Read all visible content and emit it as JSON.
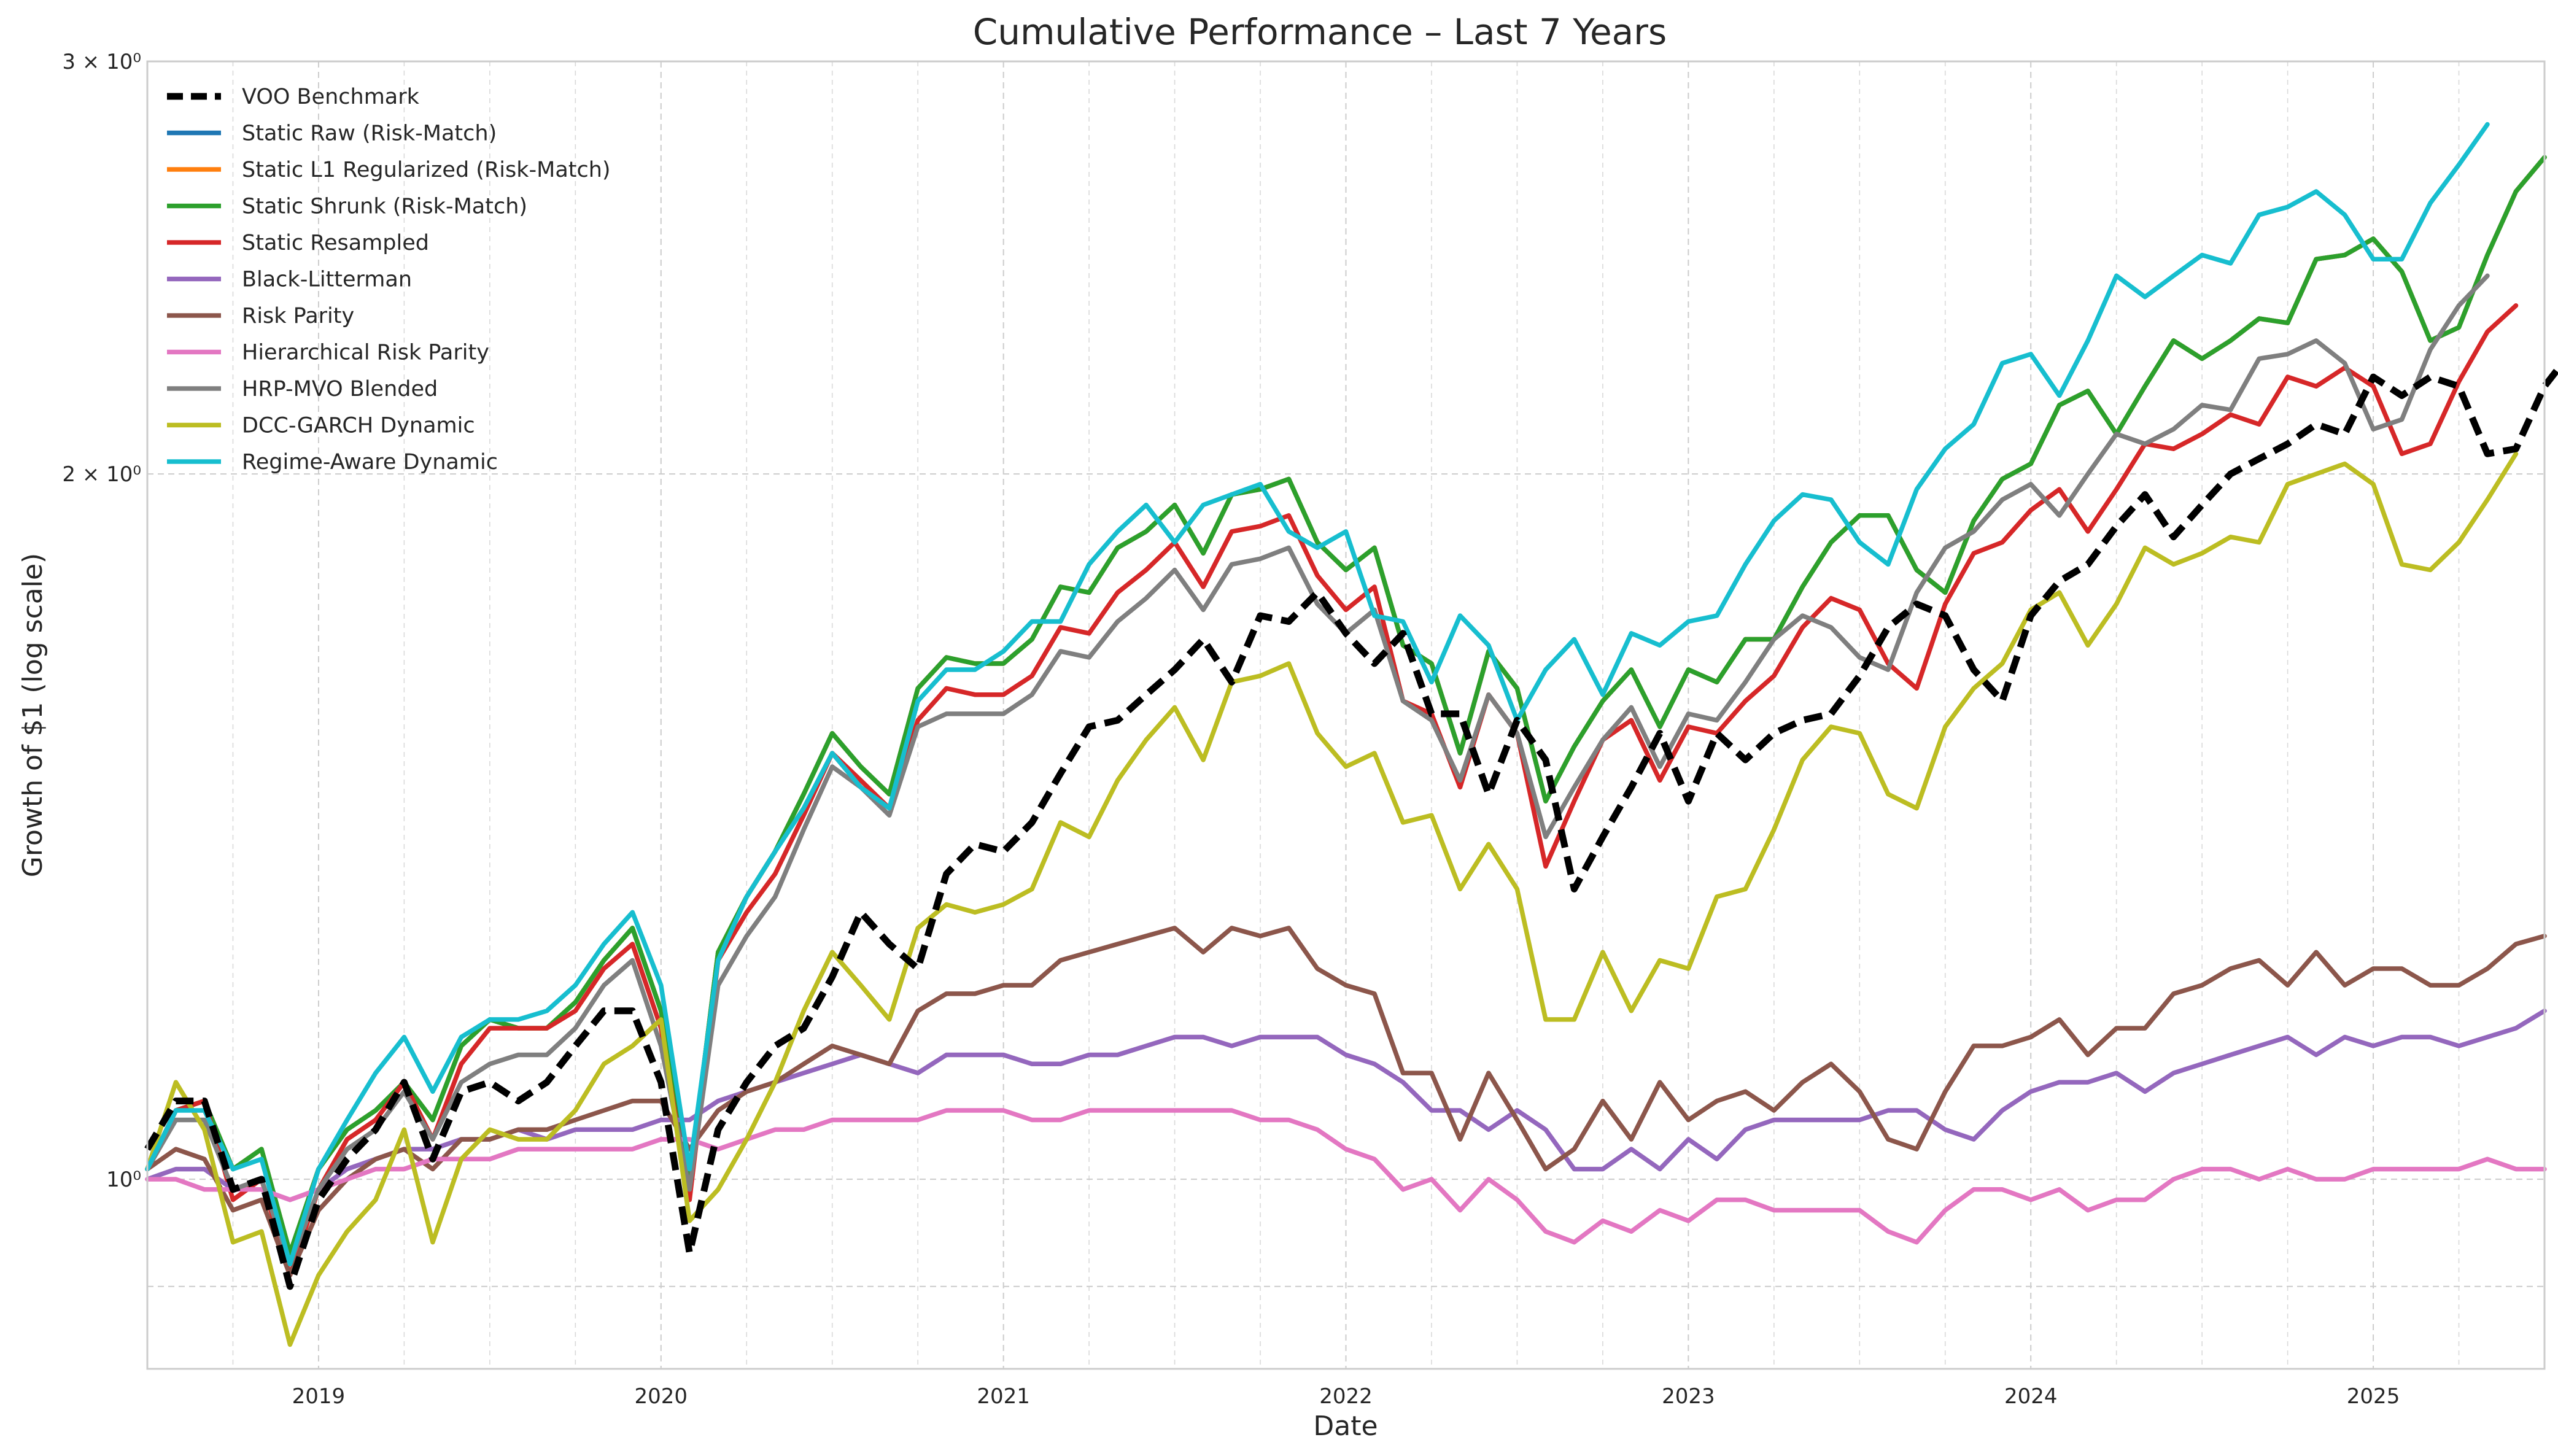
{
  "chart_data": {
    "type": "line",
    "title": "Cumulative Performance – Last 7 Years",
    "xlabel": "Date",
    "ylabel": "Growth of $1 (log scale)",
    "y_scale": "log",
    "ylim": [
      0.83,
      3.0
    ],
    "xlim": [
      "2018-07-01",
      "2025-07-01"
    ],
    "y_tick_labels": [
      {
        "value": 1,
        "label": "10⁰"
      },
      {
        "value": 2,
        "label": "2 × 10⁰"
      },
      {
        "value": 3,
        "label": "3 × 10⁰"
      }
    ],
    "x_tick_labels": [
      "2019",
      "2020",
      "2021",
      "2022",
      "2023",
      "2024",
      "2025"
    ],
    "grid": true,
    "legend_position": "top-left",
    "x_start": "2018-07",
    "x_frequency": "monthly",
    "series": [
      {
        "name": "VOO Benchmark",
        "color": "#000000",
        "style": "dashed",
        "values": [
          1.03,
          1.08,
          1.08,
          0.99,
          1.0,
          0.9,
          0.98,
          1.02,
          1.05,
          1.1,
          1.02,
          1.09,
          1.1,
          1.08,
          1.1,
          1.14,
          1.18,
          1.18,
          1.1,
          0.93,
          1.05,
          1.1,
          1.14,
          1.16,
          1.22,
          1.3,
          1.26,
          1.23,
          1.35,
          1.39,
          1.38,
          1.42,
          1.49,
          1.56,
          1.57,
          1.61,
          1.65,
          1.7,
          1.63,
          1.74,
          1.73,
          1.78,
          1.71,
          1.66,
          1.71,
          1.58,
          1.58,
          1.46,
          1.57,
          1.51,
          1.33,
          1.4,
          1.47,
          1.55,
          1.45,
          1.55,
          1.51,
          1.55,
          1.57,
          1.58,
          1.64,
          1.72,
          1.76,
          1.74,
          1.65,
          1.6,
          1.74,
          1.8,
          1.83,
          1.9,
          1.96,
          1.88,
          1.94,
          2.0,
          2.03,
          2.06,
          2.1,
          2.08,
          2.2,
          2.16,
          2.2,
          2.18,
          2.04,
          2.05,
          2.18,
          2.26,
          2.31
        ]
      },
      {
        "name": "Static Raw (Risk-Match)",
        "color": "#1f77b4",
        "style": "solid",
        "values": [
          1.01,
          1.07,
          1.08,
          1.01,
          1.03,
          0.93,
          1.01,
          1.05,
          1.07,
          1.1,
          1.06,
          1.14,
          1.17,
          1.16,
          1.16,
          1.19,
          1.24,
          1.28,
          1.18,
          1.0,
          1.25,
          1.32,
          1.38,
          1.46,
          1.55,
          1.5,
          1.46,
          1.62,
          1.67,
          1.66,
          1.66,
          1.7,
          1.79,
          1.78,
          1.86,
          1.89,
          1.94,
          1.85,
          1.96,
          1.97,
          1.99,
          1.87,
          1.82,
          1.86,
          1.69,
          1.66,
          1.52,
          1.68,
          1.62,
          1.45,
          1.53,
          1.6,
          1.65,
          1.56,
          1.65,
          1.63,
          1.7,
          1.7,
          1.79,
          1.87,
          1.92,
          1.92,
          1.82,
          1.78,
          1.91,
          1.99,
          2.02,
          2.14,
          2.17,
          2.08,
          2.18,
          2.28,
          2.24,
          2.28,
          2.33,
          2.32,
          2.47,
          2.48,
          2.52,
          2.44,
          2.28,
          2.31,
          2.48,
          2.64,
          2.73
        ]
      },
      {
        "name": "Static L1 Regularized (Risk-Match)",
        "color": "#ff7f0e",
        "style": "solid",
        "values": [
          1.01,
          1.07,
          1.08,
          1.01,
          1.03,
          0.93,
          1.01,
          1.05,
          1.07,
          1.1,
          1.06,
          1.14,
          1.17,
          1.16,
          1.16,
          1.19,
          1.24,
          1.28,
          1.18,
          1.0,
          1.25,
          1.32,
          1.38,
          1.46,
          1.55,
          1.5,
          1.46,
          1.62,
          1.67,
          1.66,
          1.66,
          1.7,
          1.79,
          1.78,
          1.86,
          1.89,
          1.94,
          1.85,
          1.96,
          1.97,
          1.99,
          1.87,
          1.82,
          1.86,
          1.69,
          1.66,
          1.52,
          1.68,
          1.62,
          1.45,
          1.53,
          1.6,
          1.65,
          1.56,
          1.65,
          1.63,
          1.7,
          1.7,
          1.79,
          1.87,
          1.92,
          1.92,
          1.82,
          1.78,
          1.91,
          1.99,
          2.02,
          2.14,
          2.17,
          2.08,
          2.18,
          2.28,
          2.24,
          2.28,
          2.33,
          2.32,
          2.47,
          2.48,
          2.52,
          2.44,
          2.28,
          2.31,
          2.48,
          2.64,
          2.73
        ]
      },
      {
        "name": "Static Shrunk (Risk-Match)",
        "color": "#2ca02c",
        "style": "solid",
        "values": [
          1.01,
          1.07,
          1.08,
          1.01,
          1.03,
          0.93,
          1.01,
          1.05,
          1.07,
          1.1,
          1.06,
          1.14,
          1.17,
          1.16,
          1.16,
          1.19,
          1.24,
          1.28,
          1.18,
          1.0,
          1.25,
          1.32,
          1.38,
          1.46,
          1.55,
          1.5,
          1.46,
          1.62,
          1.67,
          1.66,
          1.66,
          1.7,
          1.79,
          1.78,
          1.86,
          1.89,
          1.94,
          1.85,
          1.96,
          1.97,
          1.99,
          1.87,
          1.82,
          1.86,
          1.69,
          1.66,
          1.52,
          1.68,
          1.62,
          1.45,
          1.53,
          1.6,
          1.65,
          1.56,
          1.65,
          1.63,
          1.7,
          1.7,
          1.79,
          1.87,
          1.92,
          1.92,
          1.82,
          1.78,
          1.91,
          1.99,
          2.02,
          2.14,
          2.17,
          2.08,
          2.18,
          2.28,
          2.24,
          2.28,
          2.33,
          2.32,
          2.47,
          2.48,
          2.52,
          2.44,
          2.28,
          2.31,
          2.48,
          2.64,
          2.73
        ]
      },
      {
        "name": "Static Resampled",
        "color": "#d62728",
        "style": "solid",
        "values": [
          1.01,
          1.07,
          1.08,
          0.98,
          1.0,
          0.91,
          0.99,
          1.04,
          1.06,
          1.1,
          1.04,
          1.12,
          1.16,
          1.16,
          1.16,
          1.18,
          1.23,
          1.26,
          1.16,
          0.98,
          1.24,
          1.3,
          1.35,
          1.43,
          1.52,
          1.48,
          1.44,
          1.57,
          1.62,
          1.61,
          1.61,
          1.64,
          1.72,
          1.71,
          1.78,
          1.82,
          1.87,
          1.79,
          1.89,
          1.9,
          1.92,
          1.81,
          1.75,
          1.79,
          1.6,
          1.58,
          1.47,
          1.61,
          1.55,
          1.36,
          1.45,
          1.54,
          1.57,
          1.48,
          1.56,
          1.55,
          1.6,
          1.64,
          1.72,
          1.77,
          1.75,
          1.66,
          1.62,
          1.76,
          1.85,
          1.87,
          1.93,
          1.97,
          1.89,
          1.97,
          2.06,
          2.05,
          2.08,
          2.12,
          2.1,
          2.2,
          2.18,
          2.22,
          2.18,
          2.04,
          2.06,
          2.19,
          2.3,
          2.36
        ]
      },
      {
        "name": "Black-Litterman",
        "color": "#9467bd",
        "style": "solid",
        "values": [
          1.0,
          1.01,
          1.01,
          0.99,
          0.99,
          0.98,
          0.99,
          1.01,
          1.02,
          1.03,
          1.03,
          1.04,
          1.04,
          1.05,
          1.04,
          1.05,
          1.05,
          1.05,
          1.06,
          1.06,
          1.08,
          1.09,
          1.1,
          1.11,
          1.12,
          1.13,
          1.12,
          1.11,
          1.13,
          1.13,
          1.13,
          1.12,
          1.12,
          1.13,
          1.13,
          1.14,
          1.15,
          1.15,
          1.14,
          1.15,
          1.15,
          1.15,
          1.13,
          1.12,
          1.1,
          1.07,
          1.07,
          1.05,
          1.07,
          1.05,
          1.01,
          1.01,
          1.03,
          1.01,
          1.04,
          1.02,
          1.05,
          1.06,
          1.06,
          1.06,
          1.06,
          1.07,
          1.07,
          1.05,
          1.04,
          1.07,
          1.09,
          1.1,
          1.1,
          1.11,
          1.09,
          1.11,
          1.12,
          1.13,
          1.14,
          1.15,
          1.13,
          1.15,
          1.14,
          1.15,
          1.15,
          1.14,
          1.15,
          1.16,
          1.18
        ]
      },
      {
        "name": "Risk Parity",
        "color": "#8c564b",
        "style": "solid",
        "values": [
          1.01,
          1.03,
          1.02,
          0.97,
          0.98,
          0.91,
          0.97,
          1.0,
          1.02,
          1.03,
          1.01,
          1.04,
          1.04,
          1.05,
          1.05,
          1.06,
          1.07,
          1.08,
          1.08,
          1.03,
          1.07,
          1.09,
          1.1,
          1.12,
          1.14,
          1.13,
          1.12,
          1.18,
          1.2,
          1.2,
          1.21,
          1.21,
          1.24,
          1.25,
          1.26,
          1.27,
          1.28,
          1.25,
          1.28,
          1.27,
          1.28,
          1.23,
          1.21,
          1.2,
          1.11,
          1.11,
          1.04,
          1.11,
          1.06,
          1.01,
          1.03,
          1.08,
          1.04,
          1.1,
          1.06,
          1.08,
          1.09,
          1.07,
          1.1,
          1.12,
          1.09,
          1.04,
          1.03,
          1.09,
          1.14,
          1.14,
          1.15,
          1.17,
          1.13,
          1.16,
          1.16,
          1.2,
          1.21,
          1.23,
          1.24,
          1.21,
          1.25,
          1.21,
          1.23,
          1.23,
          1.21,
          1.21,
          1.23,
          1.26,
          1.27
        ]
      },
      {
        "name": "Hierarchical Risk Parity",
        "color": "#e377c2",
        "style": "solid",
        "values": [
          1.0,
          1.0,
          0.99,
          0.99,
          0.99,
          0.98,
          0.99,
          1.0,
          1.01,
          1.01,
          1.02,
          1.02,
          1.02,
          1.03,
          1.03,
          1.03,
          1.03,
          1.03,
          1.04,
          1.04,
          1.03,
          1.04,
          1.05,
          1.05,
          1.06,
          1.06,
          1.06,
          1.06,
          1.07,
          1.07,
          1.07,
          1.06,
          1.06,
          1.07,
          1.07,
          1.07,
          1.07,
          1.07,
          1.07,
          1.06,
          1.06,
          1.05,
          1.03,
          1.02,
          0.99,
          1.0,
          0.97,
          1.0,
          0.98,
          0.95,
          0.94,
          0.96,
          0.95,
          0.97,
          0.96,
          0.98,
          0.98,
          0.97,
          0.97,
          0.97,
          0.97,
          0.95,
          0.94,
          0.97,
          0.99,
          0.99,
          0.98,
          0.99,
          0.97,
          0.98,
          0.98,
          1.0,
          1.01,
          1.01,
          1.0,
          1.01,
          1.0,
          1.0,
          1.01,
          1.01,
          1.01,
          1.01,
          1.02,
          1.01,
          1.01
        ]
      },
      {
        "name": "HRP-MVO Blended",
        "color": "#7f7f7f",
        "style": "solid",
        "values": [
          1.01,
          1.06,
          1.06,
          0.99,
          1.0,
          0.92,
          0.99,
          1.03,
          1.05,
          1.09,
          1.04,
          1.1,
          1.12,
          1.13,
          1.13,
          1.16,
          1.21,
          1.24,
          1.14,
          0.99,
          1.21,
          1.27,
          1.32,
          1.41,
          1.5,
          1.47,
          1.43,
          1.56,
          1.58,
          1.58,
          1.58,
          1.61,
          1.68,
          1.67,
          1.73,
          1.77,
          1.82,
          1.75,
          1.83,
          1.84,
          1.86,
          1.76,
          1.71,
          1.75,
          1.6,
          1.57,
          1.48,
          1.61,
          1.55,
          1.4,
          1.47,
          1.54,
          1.59,
          1.5,
          1.58,
          1.57,
          1.63,
          1.7,
          1.74,
          1.72,
          1.67,
          1.65,
          1.78,
          1.86,
          1.89,
          1.95,
          1.98,
          1.92,
          2.0,
          2.08,
          2.06,
          2.09,
          2.14,
          2.13,
          2.24,
          2.25,
          2.28,
          2.23,
          2.09,
          2.11,
          2.26,
          2.36,
          2.43
        ]
      },
      {
        "name": "DCC-GARCH Dynamic",
        "color": "#bcbd22",
        "style": "solid",
        "values": [
          1.01,
          1.1,
          1.05,
          0.94,
          0.95,
          0.85,
          0.91,
          0.95,
          0.98,
          1.05,
          0.94,
          1.02,
          1.05,
          1.04,
          1.04,
          1.07,
          1.12,
          1.14,
          1.17,
          0.96,
          0.99,
          1.04,
          1.1,
          1.18,
          1.25,
          1.21,
          1.17,
          1.28,
          1.31,
          1.3,
          1.31,
          1.33,
          1.42,
          1.4,
          1.48,
          1.54,
          1.59,
          1.51,
          1.63,
          1.64,
          1.66,
          1.55,
          1.5,
          1.52,
          1.42,
          1.43,
          1.33,
          1.39,
          1.33,
          1.17,
          1.17,
          1.25,
          1.18,
          1.24,
          1.23,
          1.32,
          1.33,
          1.41,
          1.51,
          1.56,
          1.55,
          1.46,
          1.44,
          1.56,
          1.62,
          1.66,
          1.75,
          1.78,
          1.69,
          1.76,
          1.86,
          1.83,
          1.85,
          1.88,
          1.87,
          1.98,
          2.0,
          2.02,
          1.98,
          1.83,
          1.82,
          1.87,
          1.95,
          2.04
        ]
      },
      {
        "name": "Regime-Aware Dynamic",
        "color": "#17becf",
        "style": "solid",
        "values": [
          1.01,
          1.07,
          1.07,
          1.01,
          1.02,
          0.92,
          1.01,
          1.06,
          1.11,
          1.15,
          1.09,
          1.15,
          1.17,
          1.17,
          1.18,
          1.21,
          1.26,
          1.3,
          1.21,
          1.01,
          1.24,
          1.32,
          1.38,
          1.44,
          1.52,
          1.47,
          1.44,
          1.6,
          1.65,
          1.65,
          1.68,
          1.73,
          1.73,
          1.83,
          1.89,
          1.94,
          1.87,
          1.94,
          1.96,
          1.98,
          1.89,
          1.86,
          1.89,
          1.74,
          1.73,
          1.63,
          1.74,
          1.69,
          1.57,
          1.65,
          1.7,
          1.61,
          1.71,
          1.69,
          1.73,
          1.74,
          1.83,
          1.91,
          1.96,
          1.95,
          1.87,
          1.83,
          1.97,
          2.05,
          2.1,
          2.23,
          2.25,
          2.16,
          2.28,
          2.43,
          2.38,
          2.43,
          2.48,
          2.46,
          2.58,
          2.6,
          2.64,
          2.58,
          2.47,
          2.47,
          2.61,
          2.71,
          2.82
        ]
      }
    ]
  }
}
